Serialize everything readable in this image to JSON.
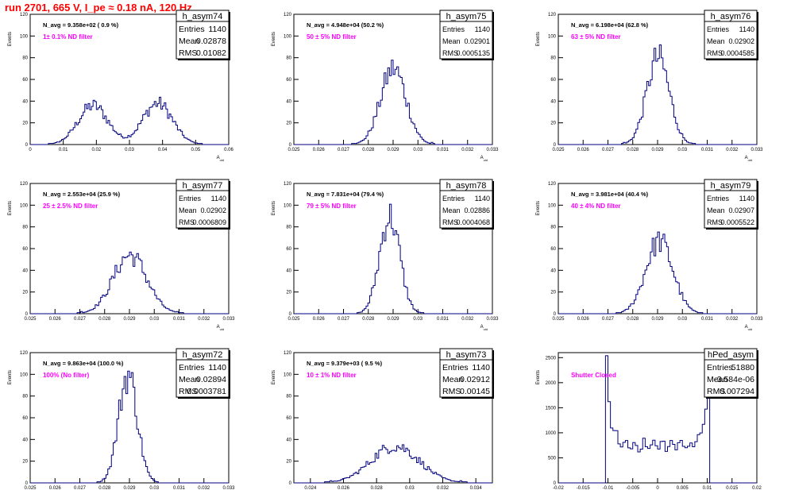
{
  "page_title": "run 2701,   665 V, I_pe ≈ 0.18 nA, 120 Hz",
  "colors": {
    "title": "#ff0000",
    "hist": "#000080",
    "label": "#ff00ff",
    "axis": "#000000"
  },
  "chart_data": [
    {
      "type": "histogram",
      "name": "h_asym74",
      "stats": {
        "Entries": "1140",
        "Mean": "0.02878",
        "RMS": "0.01082"
      },
      "navg": "N_avg = 9.358e+02 ( 0.9 %)",
      "label": "1± 0.1% ND filter",
      "ylabel": "Events",
      "xlabel": "A_uid",
      "xlim": [
        0,
        0.06
      ],
      "ylim": [
        0,
        120
      ],
      "xticks": [
        "0",
        "0.01",
        "0.02",
        "0.03",
        "0.04",
        "0.05",
        "0.06"
      ],
      "yticks": [
        "0",
        "20",
        "40",
        "60",
        "80",
        "100",
        "120"
      ],
      "peaks": [
        [
          0.019,
          0.0045,
          36
        ],
        [
          0.0385,
          0.0045,
          38
        ]
      ],
      "bins": 120
    },
    {
      "type": "histogram",
      "name": "h_asym75",
      "stats": {
        "Entries": "1140",
        "Mean": "0.02901",
        "RMS": "0.0005135"
      },
      "navg": "N_avg = 4.948e+04 (50.2 %)",
      "label": "50 ± 5% ND filter",
      "ylabel": "Events",
      "xlabel": "A_uid",
      "xlim": [
        0.025,
        0.033
      ],
      "ylim": [
        0,
        120
      ],
      "xticks": [
        "0.025",
        "0.026",
        "0.027",
        "0.028",
        "0.029",
        "0.03",
        "0.031",
        "0.032",
        "0.033"
      ],
      "yticks": [
        "0",
        "20",
        "40",
        "60",
        "80",
        "100",
        "120"
      ],
      "peaks": [
        [
          0.02901,
          0.000513,
          70
        ]
      ],
      "bins": 110
    },
    {
      "type": "histogram",
      "name": "h_asym76",
      "stats": {
        "Entries": "1140",
        "Mean": "0.02902",
        "RMS": "0.0004585"
      },
      "navg": "N_avg = 6.198e+04 (62.8 %)",
      "label": "63 ± 5% ND filter",
      "ylabel": "Events",
      "xlabel": "A_uid",
      "xlim": [
        0.025,
        0.033
      ],
      "ylim": [
        0,
        120
      ],
      "xticks": [
        "0.025",
        "0.026",
        "0.027",
        "0.028",
        "0.029",
        "0.03",
        "0.031",
        "0.032",
        "0.033"
      ],
      "yticks": [
        "0",
        "20",
        "40",
        "60",
        "80",
        "100",
        "120"
      ],
      "peaks": [
        [
          0.02902,
          0.000458,
          80
        ]
      ],
      "bins": 110
    },
    {
      "type": "histogram",
      "name": "h_asym77",
      "stats": {
        "Entries": "1140",
        "Mean": "0.02902",
        "RMS": "0.0006809"
      },
      "navg": "N_avg = 2.553e+04 (25.9 %)",
      "label": "25 ± 2.5% ND filter",
      "ylabel": "Events",
      "xlabel": "A_uid",
      "xlim": [
        0.025,
        0.033
      ],
      "ylim": [
        0,
        120
      ],
      "xticks": [
        "0.025",
        "0.026",
        "0.027",
        "0.028",
        "0.029",
        "0.03",
        "0.031",
        "0.032",
        "0.033"
      ],
      "yticks": [
        "0",
        "20",
        "40",
        "60",
        "80",
        "100",
        "120"
      ],
      "peaks": [
        [
          0.02902,
          0.00068,
          54
        ]
      ],
      "bins": 110
    },
    {
      "type": "histogram",
      "name": "h_asym78",
      "stats": {
        "Entries": "1140",
        "Mean": "0.02886",
        "RMS": "0.0004068"
      },
      "navg": "N_avg = 7.831e+04 (79.4 %)",
      "label": "79 ± 5% ND filter",
      "ylabel": "Events",
      "xlabel": "A_uid",
      "xlim": [
        0.025,
        0.033
      ],
      "ylim": [
        0,
        120
      ],
      "xticks": [
        "0.025",
        "0.026",
        "0.027",
        "0.028",
        "0.029",
        "0.03",
        "0.031",
        "0.032",
        "0.033"
      ],
      "yticks": [
        "0",
        "20",
        "40",
        "60",
        "80",
        "100",
        "120"
      ],
      "peaks": [
        [
          0.02886,
          0.000407,
          90
        ]
      ],
      "bins": 110
    },
    {
      "type": "histogram",
      "name": "h_asym79",
      "stats": {
        "Entries": "1140",
        "Mean": "0.02907",
        "RMS": "0.0005522"
      },
      "navg": "N_avg = 3.981e+04 (40.4 %)",
      "label": "40 ± 4% ND filter",
      "ylabel": "Events",
      "xlabel": "A_uid",
      "xlim": [
        0.025,
        0.033
      ],
      "ylim": [
        0,
        120
      ],
      "xticks": [
        "0.025",
        "0.026",
        "0.027",
        "0.028",
        "0.029",
        "0.03",
        "0.031",
        "0.032",
        "0.033"
      ],
      "yticks": [
        "0",
        "20",
        "40",
        "60",
        "80",
        "100",
        "120"
      ],
      "peaks": [
        [
          0.02907,
          0.00055,
          67
        ]
      ],
      "bins": 110
    },
    {
      "type": "histogram",
      "name": "h_asym72",
      "stats": {
        "Entries": "1140",
        "Mean": "0.02894",
        "RMS": "0.0003781"
      },
      "navg": "N_avg = 9.863e+04 (100.0 %)",
      "label": "100% (No filter)",
      "ylabel": "Events",
      "xlabel": "A_uid",
      "xlim": [
        0.025,
        0.033
      ],
      "ylim": [
        0,
        120
      ],
      "xticks": [
        "0.025",
        "0.026",
        "0.027",
        "0.028",
        "0.029",
        "0.03",
        "0.031",
        "0.032",
        "0.033"
      ],
      "yticks": [
        "0",
        "20",
        "40",
        "60",
        "80",
        "100",
        "120"
      ],
      "peaks": [
        [
          0.02894,
          0.000378,
          100
        ]
      ],
      "bins": 110
    },
    {
      "type": "histogram",
      "name": "h_asym73",
      "stats": {
        "Entries": "1140",
        "Mean": "0.02912",
        "RMS": "0.00145"
      },
      "navg": "N_avg = 9.379e+03 ( 9.5 %)",
      "label": "10 ± 1% ND filter",
      "ylabel": "Events",
      "xlabel": "A_uid",
      "xlim": [
        0.023,
        0.035
      ],
      "ylim": [
        0,
        120
      ],
      "xticks": [
        "0.024",
        "0.026",
        "0.028",
        "0.03",
        "0.032",
        "0.034"
      ],
      "yticks": [
        "0",
        "20",
        "40",
        "60",
        "80",
        "100",
        "120"
      ],
      "peaks": [
        [
          0.02912,
          0.00145,
          34
        ]
      ],
      "bins": 110
    },
    {
      "type": "histogram",
      "name": "hPed_asym",
      "stats": {
        "Entries": "51880",
        "Mean": "-3.584e-06",
        "RMS": "0.007294"
      },
      "navg": "",
      "label": "Shutter Closed",
      "ylabel": "Events",
      "xlabel": "A_uid",
      "xlim": [
        -0.02,
        0.02
      ],
      "ylim": [
        0,
        2600
      ],
      "xticks": [
        "-0.02",
        "-0.015",
        "-0.01",
        "-0.005",
        "0",
        "0.005",
        "0.01",
        "0.015",
        "0.02"
      ],
      "yticks": [
        "0",
        "500",
        "1000",
        "1500",
        "2000",
        "2500"
      ],
      "range": [
        -0.0105,
        0.0105
      ],
      "bins": 80
    }
  ]
}
